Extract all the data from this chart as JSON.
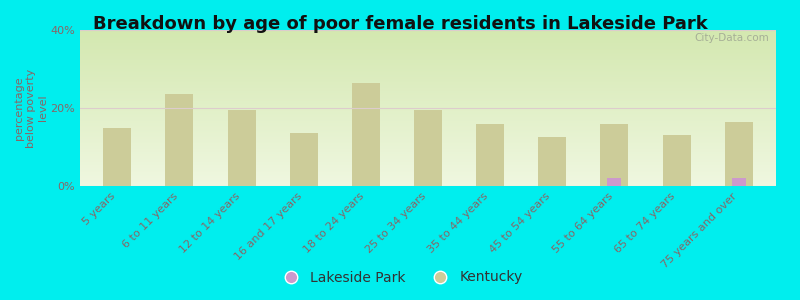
{
  "title": "Breakdown by age of poor female residents in Lakeside Park",
  "ylabel": "percentage\nbelow poverty\nlevel",
  "categories": [
    "5 years",
    "6 to 11 years",
    "12 to 14 years",
    "16 and 17 years",
    "18 to 24 years",
    "25 to 34 years",
    "35 to 44 years",
    "45 to 54 years",
    "55 to 64 years",
    "65 to 74 years",
    "75 years and over"
  ],
  "lakeside_values": [
    0,
    0,
    0,
    0,
    0,
    0,
    0,
    0,
    2.0,
    0,
    2.0
  ],
  "kentucky_values": [
    15.0,
    23.5,
    19.5,
    13.5,
    26.5,
    19.5,
    16.0,
    12.5,
    16.0,
    13.0,
    16.5
  ],
  "lakeside_color": "#cc99cc",
  "kentucky_color": "#cccc99",
  "bg_color": "#00eeee",
  "plot_bg_top": "#d4e6b0",
  "plot_bg_bottom": "#f0f8e0",
  "ylim": [
    0,
    40
  ],
  "yticks": [
    0,
    20,
    40
  ],
  "ytick_labels": [
    "0%",
    "20%",
    "40%"
  ],
  "bar_width": 0.45,
  "title_fontsize": 13,
  "axis_label_fontsize": 8,
  "tick_fontsize": 8,
  "legend_fontsize": 10,
  "ylabel_color": "#886666",
  "tick_color": "#886666",
  "grid_color": "#ddcccc",
  "watermark": "City-Data.com"
}
